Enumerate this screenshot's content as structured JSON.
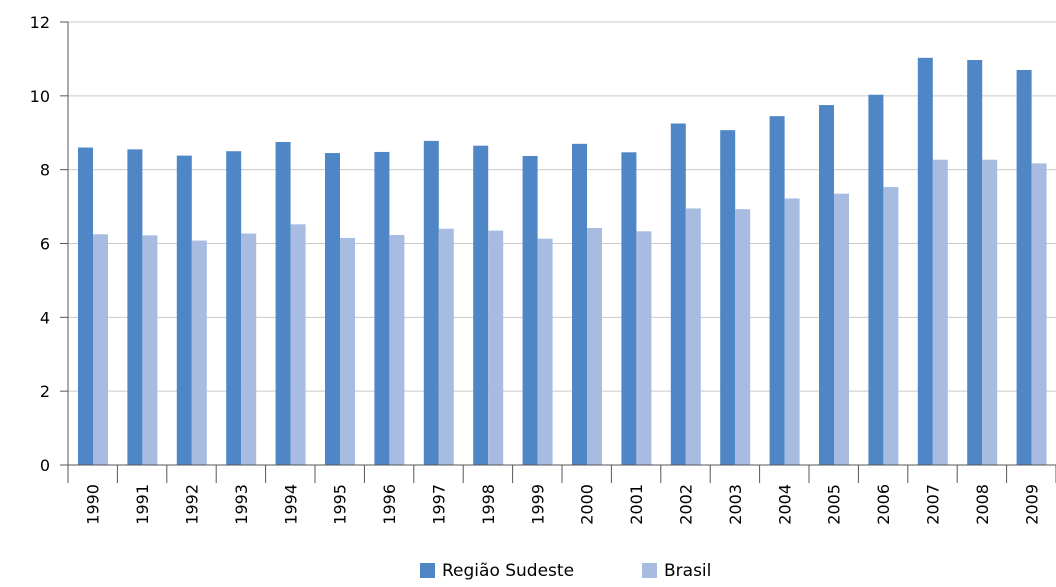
{
  "chart_data": {
    "type": "bar",
    "title": "",
    "xlabel": "",
    "ylabel": "",
    "ylim": [
      0,
      12
    ],
    "yticks": [
      0,
      2,
      4,
      6,
      8,
      10,
      12
    ],
    "grid": "horizontal",
    "legend": "bottom-center",
    "categories": [
      "1990",
      "1991",
      "1992",
      "1993",
      "1994",
      "1995",
      "1996",
      "1997",
      "1998",
      "1999",
      "2000",
      "2001",
      "2002",
      "2003",
      "2004",
      "2005",
      "2006",
      "2007",
      "2008",
      "2009"
    ],
    "series": [
      {
        "name": "Região Sudeste",
        "color": "#4f86c6",
        "values": [
          8.6,
          8.55,
          8.38,
          8.5,
          8.75,
          8.45,
          8.48,
          8.78,
          8.65,
          8.37,
          8.7,
          8.47,
          9.25,
          9.07,
          9.45,
          9.75,
          10.03,
          11.03,
          10.97,
          10.7
        ]
      },
      {
        "name": "Brasil",
        "color": "#a8bce2",
        "values": [
          6.25,
          6.22,
          6.08,
          6.27,
          6.52,
          6.15,
          6.23,
          6.4,
          6.35,
          6.13,
          6.42,
          6.33,
          6.95,
          6.93,
          7.22,
          7.35,
          7.53,
          8.27,
          8.27,
          8.17
        ]
      }
    ]
  }
}
